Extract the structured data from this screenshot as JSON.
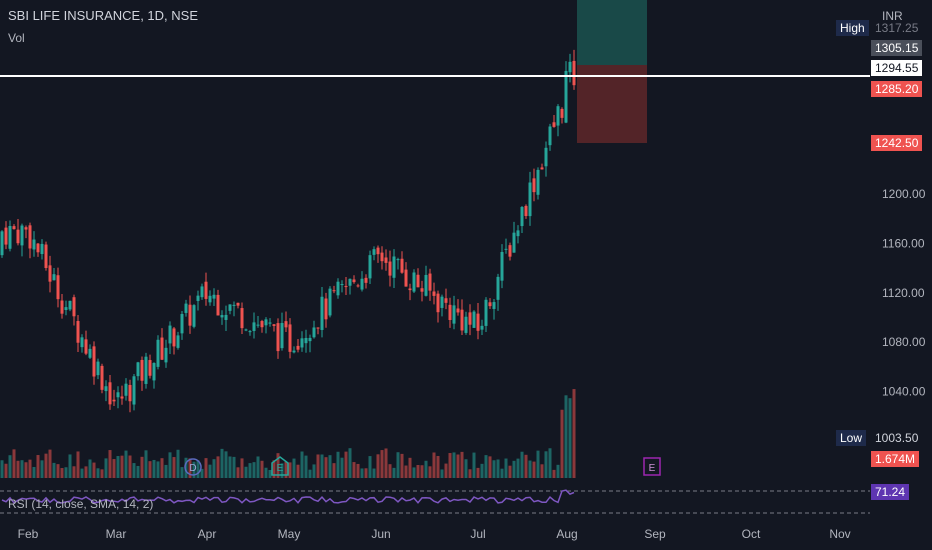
{
  "header": {
    "symbol_line": "SBI LIFE INSURANCE, 1D, NSE",
    "volume_label": "Vol"
  },
  "price_axis": {
    "currency": "INR"
  },
  "labels": {
    "high_tag": "High",
    "high_value": "1317.25",
    "target_value": "1305.15",
    "hline_value": "1294.55",
    "entry_value": "1285.20",
    "stop_value": "1242.50",
    "low_tag": "Low",
    "low_value": "1003.50",
    "volume_value": "1.674M",
    "rsi_label": "RSI (14, close, SMA, 14, 2)",
    "rsi_value": "71.24"
  },
  "markers": {
    "dividend": "D",
    "earnings1": "E",
    "earnings2": "E"
  },
  "colors": {
    "background": "#131722",
    "up": "#26a69a",
    "down": "#ef5350",
    "rsi": "#7e57c2",
    "profit_zone": "#1b4f4d",
    "loss_zone": "#5b2629",
    "hline": "#ffffff",
    "high_low_tag": "#1e2a4a",
    "earnings_future": "#9c27b0"
  },
  "chart_data": {
    "type": "candlestick",
    "x_axis_labels": [
      "Feb",
      "Mar",
      "Apr",
      "May",
      "Jun",
      "Jul",
      "Aug",
      "Sep",
      "Oct",
      "Nov"
    ],
    "y_axis_ticks": [
      1040,
      1080,
      1120,
      1160,
      1200
    ],
    "ylim": [
      1003.5,
      1317.25
    ],
    "highlighted_prices": {
      "high": 1317.25,
      "target": 1305.15,
      "horizontal_line": 1294.55,
      "entry": 1285.2,
      "stop": 1242.5,
      "low": 1003.5
    },
    "approx_close_path": [
      {
        "month": "Feb",
        "close": 1170
      },
      {
        "month": "Mar",
        "close": 1030
      },
      {
        "month": "Apr",
        "close": 1120
      },
      {
        "month": "May",
        "close": 1080
      },
      {
        "month": "Jun",
        "close": 1150
      },
      {
        "month": "Jul",
        "close": 1090
      },
      {
        "month": "Aug",
        "close": 1294.55
      }
    ],
    "volume_last": "1.674M",
    "rsi": {
      "length": 14,
      "source": "close",
      "smoothing": "SMA",
      "smoothing_length": 14,
      "last": 71.24
    }
  }
}
